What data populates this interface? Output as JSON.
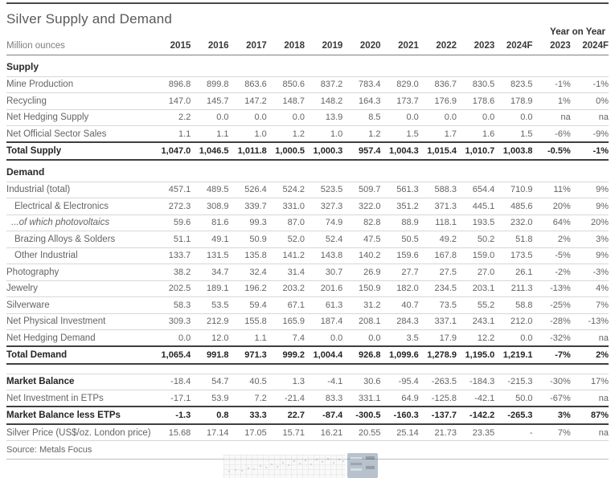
{
  "title": "Silver Supply and Demand",
  "header": {
    "unit_label": "Million ounces",
    "yoy_label": "Year on Year",
    "year_columns": [
      "2015",
      "2016",
      "2017",
      "2018",
      "2019",
      "2020",
      "2021",
      "2022",
      "2023",
      "2024F"
    ],
    "yoy_columns": [
      "2023",
      "2024F"
    ]
  },
  "sections": [
    {
      "name": "Supply",
      "rows": [
        {
          "label": "Mine Production",
          "values": [
            "896.8",
            "899.8",
            "863.6",
            "850.6",
            "837.2",
            "783.4",
            "829.0",
            "836.7",
            "830.5",
            "823.5",
            "-1%",
            "-1%"
          ]
        },
        {
          "label": "Recycling",
          "values": [
            "147.0",
            "145.7",
            "147.2",
            "148.7",
            "148.2",
            "164.3",
            "173.7",
            "176.9",
            "178.6",
            "178.9",
            "1%",
            "0%"
          ]
        },
        {
          "label": "Net Hedging Supply",
          "values": [
            "2.2",
            "0.0",
            "0.0",
            "0.0",
            "13.9",
            "8.5",
            "0.0",
            "0.0",
            "0.0",
            "0.0",
            "na",
            "na"
          ]
        },
        {
          "label": "Net Official Sector Sales",
          "values": [
            "1.1",
            "1.1",
            "1.0",
            "1.2",
            "1.0",
            "1.2",
            "1.5",
            "1.7",
            "1.6",
            "1.5",
            "-6%",
            "-9%"
          ]
        },
        {
          "label": "Total Supply",
          "style": "total",
          "values": [
            "1,047.0",
            "1,046.5",
            "1,011.8",
            "1,000.5",
            "1,000.3",
            "957.4",
            "1,004.3",
            "1,015.4",
            "1,010.7",
            "1,003.8",
            "-0.5%",
            "-1%"
          ]
        }
      ]
    },
    {
      "name": "Demand",
      "rows": [
        {
          "label": "Industrial (total)",
          "values": [
            "457.1",
            "489.5",
            "526.4",
            "524.2",
            "523.5",
            "509.7",
            "561.3",
            "588.3",
            "654.4",
            "710.9",
            "11%",
            "9%"
          ]
        },
        {
          "label": "Electrical & Electronics",
          "indent": 1,
          "values": [
            "272.3",
            "308.9",
            "339.7",
            "331.0",
            "327.3",
            "322.0",
            "351.2",
            "371.3",
            "445.1",
            "485.6",
            "20%",
            "9%"
          ]
        },
        {
          "label": "...of which photovoltaics",
          "indent": 1,
          "italic": true,
          "values": [
            "59.6",
            "81.6",
            "99.3",
            "87.0",
            "74.9",
            "82.8",
            "88.9",
            "118.1",
            "193.5",
            "232.0",
            "64%",
            "20%"
          ]
        },
        {
          "label": "Brazing Alloys & Solders",
          "indent": 1,
          "values": [
            "51.1",
            "49.1",
            "50.9",
            "52.0",
            "52.4",
            "47.5",
            "50.5",
            "49.2",
            "50.2",
            "51.8",
            "2%",
            "3%"
          ]
        },
        {
          "label": "Other Industrial",
          "indent": 1,
          "values": [
            "133.7",
            "131.5",
            "135.8",
            "141.2",
            "143.8",
            "140.2",
            "159.6",
            "167.8",
            "159.0",
            "173.5",
            "-5%",
            "9%"
          ]
        },
        {
          "label": "Photography",
          "values": [
            "38.2",
            "34.7",
            "32.4",
            "31.4",
            "30.7",
            "26.9",
            "27.7",
            "27.5",
            "27.0",
            "26.1",
            "-2%",
            "-3%"
          ]
        },
        {
          "label": "Jewelry",
          "values": [
            "202.5",
            "189.1",
            "196.2",
            "203.2",
            "201.6",
            "150.9",
            "182.0",
            "234.5",
            "203.1",
            "211.3",
            "-13%",
            "4%"
          ]
        },
        {
          "label": "Silverware",
          "values": [
            "58.3",
            "53.5",
            "59.4",
            "67.1",
            "61.3",
            "31.2",
            "40.7",
            "73.5",
            "55.2",
            "58.8",
            "-25%",
            "7%"
          ]
        },
        {
          "label": "Net Physical Investment",
          "values": [
            "309.3",
            "212.9",
            "155.8",
            "165.9",
            "187.4",
            "208.1",
            "284.3",
            "337.1",
            "243.1",
            "212.0",
            "-28%",
            "-13%"
          ]
        },
        {
          "label": "Net Hedging Demand",
          "values": [
            "0.0",
            "12.0",
            "1.1",
            "7.4",
            "0.0",
            "0.0",
            "3.5",
            "17.9",
            "12.2",
            "0.0",
            "-32%",
            "na"
          ]
        },
        {
          "label": "Total Demand",
          "style": "total",
          "values": [
            "1,065.4",
            "991.8",
            "971.3",
            "999.2",
            "1,004.4",
            "926.8",
            "1,099.6",
            "1,278.9",
            "1,195.0",
            "1,219.1",
            "-7%",
            "2%"
          ]
        }
      ]
    },
    {
      "name": null,
      "gap_before": true,
      "rows": [
        {
          "label": "Market Balance",
          "style": "bold-label",
          "values": [
            "-18.4",
            "54.7",
            "40.5",
            "1.3",
            "-4.1",
            "30.6",
            "-95.4",
            "-263.5",
            "-184.3",
            "-215.3",
            "-30%",
            "17%"
          ]
        },
        {
          "label": "Net Investment in ETPs",
          "values": [
            "-17.1",
            "53.9",
            "7.2",
            "-21.4",
            "83.3",
            "331.1",
            "64.9",
            "-125.8",
            "-42.1",
            "50.0",
            "-67%",
            "na"
          ]
        },
        {
          "label": "Market Balance less ETPs",
          "style": "total",
          "values": [
            "-1.3",
            "0.8",
            "33.3",
            "22.7",
            "-87.4",
            "-300.5",
            "-160.3",
            "-137.7",
            "-142.2",
            "-265.3",
            "3%",
            "87%"
          ]
        },
        {
          "label": "Silver Price (US$/oz. London price)",
          "values": [
            "15.68",
            "17.14",
            "17.05",
            "15.71",
            "16.21",
            "20.55",
            "25.14",
            "21.73",
            "23.35",
            "-",
            "7%",
            "na"
          ]
        }
      ]
    }
  ],
  "source": "Source: Metals Focus",
  "colors": {
    "rule_dark": "#4a4a4c",
    "rule_total": "#3f3f41",
    "rule_light": "#d7d7d8",
    "text_primary": "#242426",
    "text_secondary": "#636467",
    "watermark_panel_blue": "#72879b"
  }
}
